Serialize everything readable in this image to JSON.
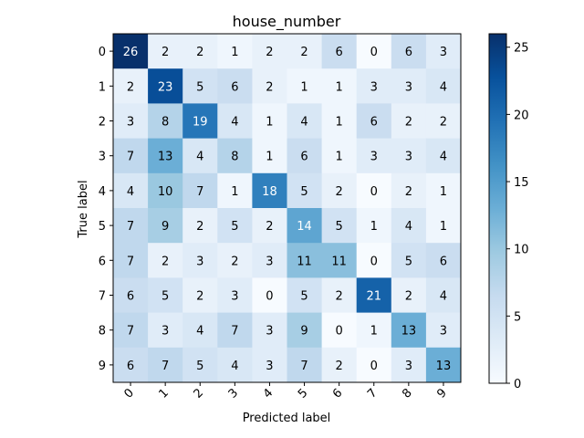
{
  "chart_data": {
    "type": "heatmap",
    "title": "house_number",
    "xlabel": "Predicted label",
    "ylabel": "True label",
    "x_categories": [
      "0",
      "1",
      "2",
      "3",
      "4",
      "5",
      "6",
      "7",
      "8",
      "9"
    ],
    "y_categories": [
      "0",
      "1",
      "2",
      "3",
      "4",
      "5",
      "6",
      "7",
      "8",
      "9"
    ],
    "values": [
      [
        26,
        2,
        2,
        1,
        2,
        2,
        6,
        0,
        6,
        3
      ],
      [
        2,
        23,
        5,
        6,
        2,
        1,
        1,
        3,
        3,
        4
      ],
      [
        3,
        8,
        19,
        4,
        1,
        4,
        1,
        6,
        2,
        2
      ],
      [
        7,
        13,
        4,
        8,
        1,
        6,
        1,
        3,
        3,
        4
      ],
      [
        4,
        10,
        7,
        1,
        18,
        5,
        2,
        0,
        2,
        1
      ],
      [
        7,
        9,
        2,
        5,
        2,
        14,
        5,
        1,
        4,
        1
      ],
      [
        7,
        2,
        3,
        2,
        3,
        11,
        11,
        0,
        5,
        6
      ],
      [
        6,
        5,
        2,
        3,
        0,
        5,
        2,
        21,
        2,
        4
      ],
      [
        7,
        3,
        4,
        7,
        3,
        9,
        0,
        1,
        13,
        3
      ],
      [
        6,
        7,
        5,
        4,
        3,
        7,
        2,
        0,
        3,
        13
      ]
    ],
    "colormap": "Blues",
    "vmin": 0,
    "vmax": 26,
    "colorbar_ticks": [
      "0",
      "5",
      "10",
      "15",
      "20",
      "25"
    ],
    "grid": false,
    "x_tick_rotation": "45°"
  }
}
